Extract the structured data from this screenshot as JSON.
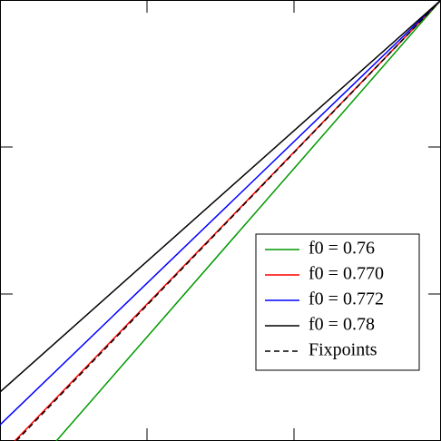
{
  "chart_data": {
    "type": "line",
    "xlim": [
      0,
      3
    ],
    "ylim": [
      0,
      3
    ],
    "xticks": [
      1,
      2
    ],
    "yticks": [
      1,
      2
    ],
    "legend": "lower right",
    "series": [
      {
        "name": "f0 = 0.76",
        "color": "#009900",
        "x": [
          0.383,
          3
        ],
        "values": [
          0,
          3
        ]
      },
      {
        "name": "f0 = 0.770",
        "color": "#ff0000",
        "x": [
          0.1,
          3
        ],
        "values": [
          0,
          3
        ]
      },
      {
        "name": "f0 = 0.772",
        "color": "#0000ff",
        "x": [
          0,
          3
        ],
        "values": [
          0.11,
          3
        ]
      },
      {
        "name": "f0 = 0.78",
        "color": "#000000",
        "x": [
          0,
          3
        ],
        "values": [
          0.333,
          3
        ]
      },
      {
        "name": "Fixpoints",
        "color": "#000000",
        "dashed": true,
        "x": [
          0.11,
          3
        ],
        "values": [
          0,
          3
        ]
      }
    ]
  }
}
